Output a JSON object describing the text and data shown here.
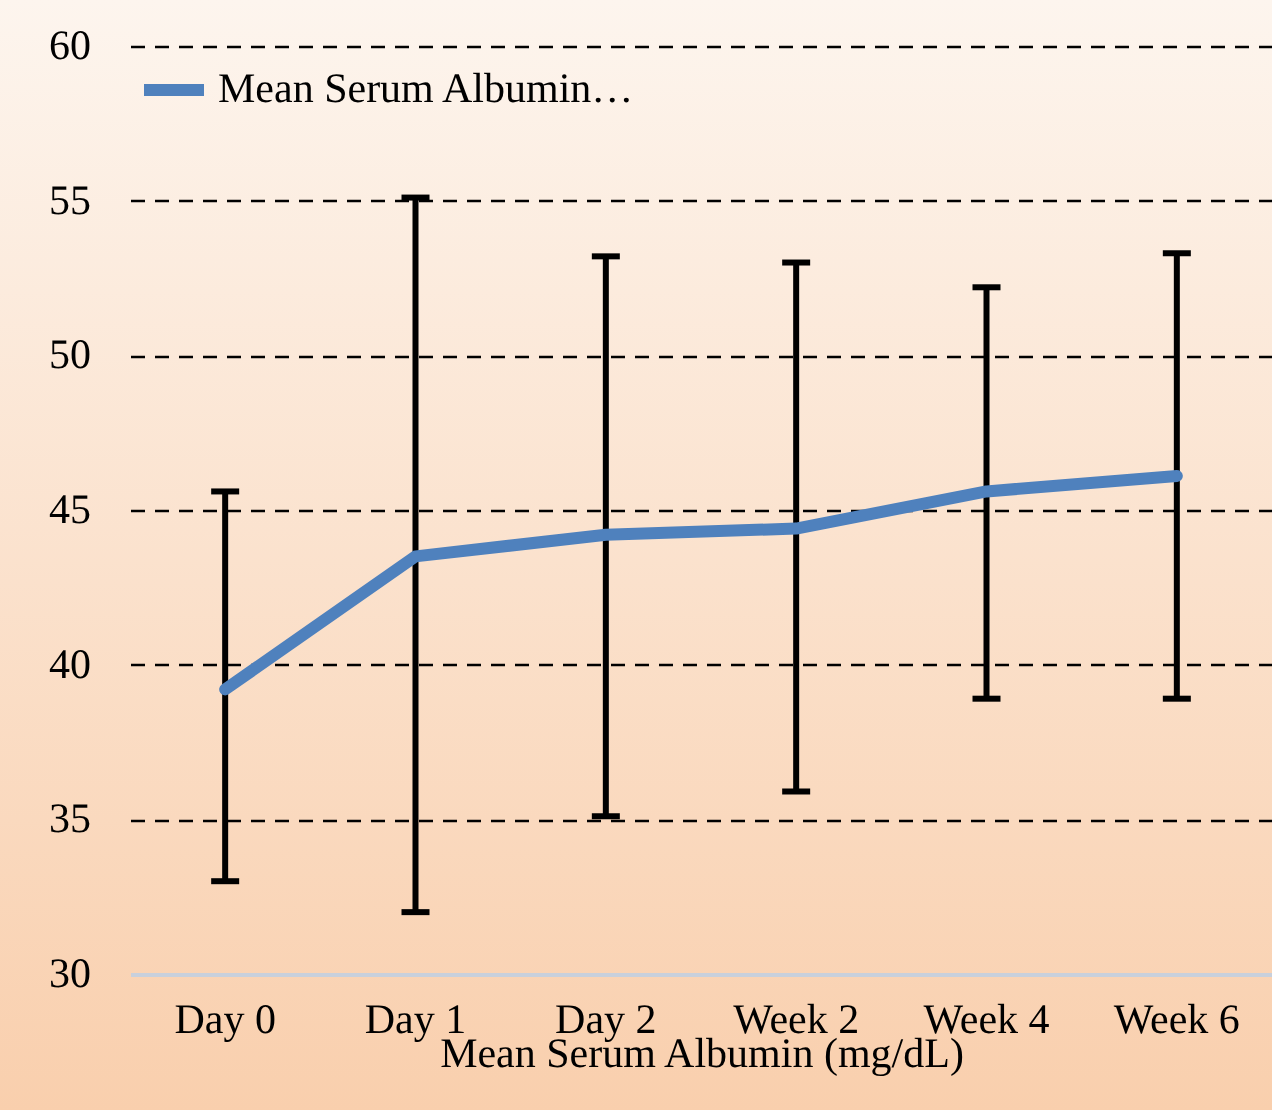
{
  "chart_data": {
    "type": "line",
    "xlabel": "Mean Serum Albumin (mg/dL)",
    "categories": [
      "Day 0",
      "Day 1",
      "Day 2",
      "Week 2",
      "Week 4",
      "Week 6"
    ],
    "series": [
      {
        "name": "Mean Serum Albumin…",
        "color": "#4f81bd",
        "values": [
          39.2,
          43.5,
          44.2,
          44.4,
          45.6,
          46.1
        ],
        "errors": [
          [
            33.0,
            45.6
          ],
          [
            32.0,
            55.1
          ],
          [
            35.1,
            53.2
          ],
          [
            35.9,
            53.0
          ],
          [
            38.9,
            52.2
          ],
          [
            38.9,
            53.3
          ]
        ]
      }
    ],
    "ylim": [
      30,
      60
    ],
    "yticks": [
      30,
      35,
      40,
      45,
      50,
      55,
      60
    ],
    "grid": "y",
    "legend": "top left",
    "marker": "none",
    "line_style": "solid"
  }
}
